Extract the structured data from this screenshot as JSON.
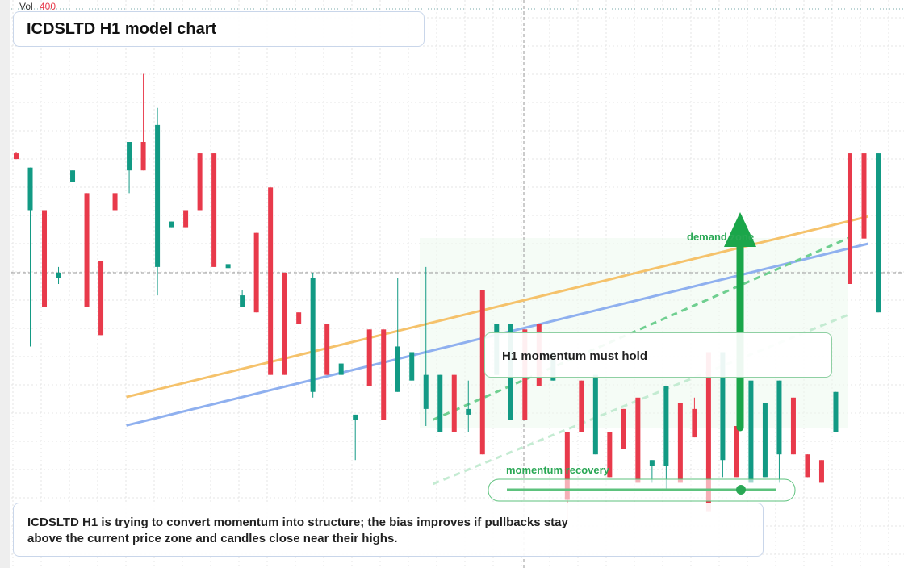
{
  "chart_data": {
    "type": "candlestick",
    "title": "ICDSLTD H1 model chart",
    "volume_label": "Vol",
    "volume_value": "400",
    "up_color": "#129a84",
    "down_color": "#e83a4b",
    "ylim": [
      0,
      100
    ],
    "candles": [
      [
        73,
        73.3,
        72,
        72
      ],
      [
        63,
        70.5,
        39,
        70.5
      ],
      [
        63,
        63,
        46,
        46
      ],
      [
        51,
        53,
        50,
        52
      ],
      [
        68,
        70,
        68,
        70
      ],
      [
        66,
        66,
        46,
        46
      ],
      [
        54,
        54,
        41,
        41
      ],
      [
        66,
        66,
        63,
        63
      ],
      [
        70,
        75,
        66,
        75
      ],
      [
        75,
        87,
        70,
        70
      ],
      [
        53,
        81,
        48,
        78
      ],
      [
        60,
        61,
        60,
        61
      ],
      [
        63,
        63,
        60,
        60
      ],
      [
        73,
        73,
        63,
        63
      ],
      [
        73,
        73,
        53,
        53
      ],
      [
        52.8,
        53.5,
        52.8,
        53.5
      ],
      [
        46,
        49,
        46,
        48
      ],
      [
        59,
        59,
        45,
        45
      ],
      [
        67,
        67,
        34,
        34
      ],
      [
        52,
        52,
        34,
        34
      ],
      [
        45,
        45,
        43,
        43
      ],
      [
        31,
        52,
        30,
        51
      ],
      [
        43,
        43,
        34,
        34
      ],
      [
        34,
        36,
        34,
        36
      ],
      [
        26,
        27,
        19,
        27
      ],
      [
        42,
        42,
        32,
        32
      ],
      [
        42,
        42,
        26,
        26
      ],
      [
        31,
        51,
        31,
        39
      ],
      [
        33,
        38,
        33,
        38
      ],
      [
        28,
        53,
        25,
        34
      ],
      [
        24,
        34,
        24,
        34
      ],
      [
        34,
        34,
        24,
        24
      ],
      [
        27,
        33,
        24,
        28
      ],
      [
        49,
        49,
        20,
        20
      ],
      [
        34,
        43,
        34,
        43
      ],
      [
        26,
        43,
        26,
        43
      ],
      [
        42,
        42,
        26,
        26
      ],
      [
        43,
        43,
        32,
        32
      ],
      [
        33,
        38,
        33,
        38
      ],
      [
        24,
        24,
        8,
        12
      ],
      [
        33,
        33,
        24,
        24
      ],
      [
        20,
        34,
        20,
        34
      ],
      [
        24,
        24,
        16,
        16
      ],
      [
        28,
        28,
        21,
        21
      ],
      [
        30,
        30,
        15,
        15
      ],
      [
        18,
        19,
        15,
        19
      ],
      [
        18,
        32,
        14,
        32
      ],
      [
        29,
        29,
        15,
        15
      ],
      [
        28,
        30,
        23,
        23
      ],
      [
        38,
        38,
        10,
        10
      ],
      [
        19,
        38,
        16,
        38
      ],
      [
        25,
        25,
        16,
        16
      ],
      [
        15,
        33,
        15,
        33
      ],
      [
        16,
        29,
        16,
        29
      ],
      [
        20,
        33,
        15,
        33
      ],
      [
        30,
        30,
        20,
        20
      ],
      [
        20,
        20,
        16,
        16
      ],
      [
        19,
        19,
        15,
        15
      ],
      [
        24,
        31,
        24,
        31
      ],
      [
        73,
        73,
        50,
        50
      ],
      [
        73,
        73,
        58,
        58
      ],
      [
        45,
        73,
        45,
        73
      ]
    ],
    "trendlines": [
      {
        "color": "#f5c26b",
        "x": [
          7.8,
          60.3
        ],
        "values": [
          30.1,
          61.9
        ]
      },
      {
        "color": "#8fb0ef",
        "x": [
          7.8,
          60.3
        ],
        "values": [
          25.1,
          57.1
        ]
      },
      {
        "color": "#6fcf90",
        "x": [
          29.5,
          58.9
        ],
        "values": [
          26.1,
          58.1
        ]
      },
      {
        "color": "#c4ebd2",
        "x": [
          29.5,
          58.9
        ],
        "values": [
          14.8,
          44.6
        ]
      }
    ],
    "zone_label": "demand zone",
    "callout": "H1 momentum must hold",
    "slider_label": "momentum recovery",
    "summary": "ICDSLTD H1 is trying to convert momentum into structure; the bias improves if pullbacks stay above the current price zone and candles close near their highs."
  }
}
